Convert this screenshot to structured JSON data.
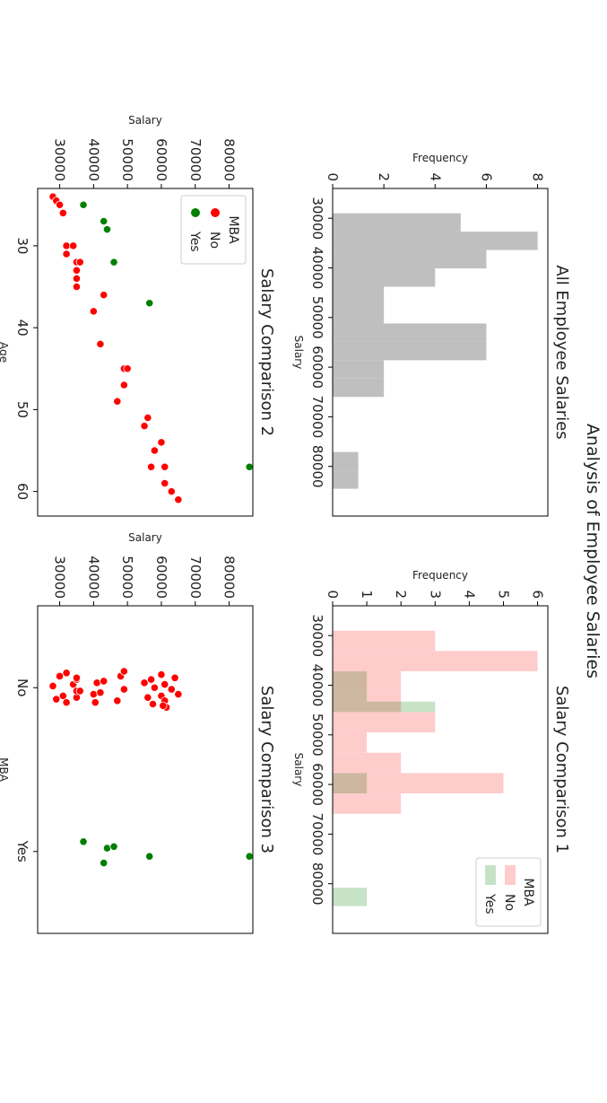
{
  "figure": {
    "suptitle": "Analysis of Employee Salaries"
  },
  "chart_data": [
    {
      "id": "all",
      "type": "bar",
      "title": "All Employee Salaries",
      "xlabel": "Salary",
      "ylabel": "Frequency",
      "xlim": [
        24000,
        90000
      ],
      "ylim": [
        0,
        8.4
      ],
      "xticks": [
        30000,
        40000,
        50000,
        60000,
        70000,
        80000
      ],
      "yticks": [
        0,
        2,
        4,
        6,
        8
      ],
      "grid": false,
      "series": [
        {
          "color": "#bfbfbf",
          "bins": [
            [
              29000,
              32700,
              5
            ],
            [
              32700,
              36400,
              8
            ],
            [
              36400,
              40100,
              6
            ],
            [
              40100,
              43800,
              4
            ],
            [
              43800,
              47500,
              2
            ],
            [
              47500,
              51200,
              2
            ],
            [
              51200,
              54900,
              6
            ],
            [
              54900,
              58600,
              6
            ],
            [
              58600,
              62300,
              2
            ],
            [
              62300,
              66000,
              2
            ],
            [
              66000,
              69700,
              0
            ],
            [
              69700,
              73400,
              0
            ],
            [
              73400,
              77100,
              0
            ],
            [
              77100,
              80800,
              1
            ],
            [
              80800,
              84500,
              1
            ]
          ]
        }
      ]
    },
    {
      "id": "mba",
      "type": "bar",
      "title": "Salary Comparison 1",
      "xlabel": "Salary",
      "ylabel": "Frequency",
      "xlim": [
        24000,
        90000
      ],
      "ylim": [
        0,
        6.3
      ],
      "xticks": [
        30000,
        40000,
        50000,
        60000,
        70000,
        80000
      ],
      "yticks": [
        0,
        1,
        2,
        3,
        4,
        5,
        6
      ],
      "grid": false,
      "legend": {
        "title": "MBA",
        "placement": "top-right"
      },
      "series": [
        {
          "name": "No",
          "color": "#ffcccc",
          "bins": [
            [
              29000,
              33100,
              3
            ],
            [
              33100,
              37200,
              6
            ],
            [
              37200,
              41300,
              2
            ],
            [
              41300,
              45400,
              2
            ],
            [
              45400,
              49500,
              3
            ],
            [
              49500,
              53600,
              1
            ],
            [
              53600,
              57700,
              2
            ],
            [
              57700,
              61800,
              5
            ],
            [
              61800,
              65900,
              2
            ]
          ]
        },
        {
          "name": "Yes",
          "color": "#c7e3c7",
          "bins": [
            [
              37200,
              41300,
              1
            ],
            [
              41300,
              43300,
              1
            ],
            [
              43300,
              45400,
              3
            ],
            [
              45400,
              57700,
              0
            ],
            [
              57700,
              61800,
              1
            ],
            [
              80800,
              84500,
              1
            ]
          ]
        }
      ]
    },
    {
      "id": "age",
      "type": "scatter",
      "title": "Salary Comparison 2",
      "xlabel": "Age",
      "ylabel": "Salary",
      "xlim": [
        23,
        63
      ],
      "ylim": [
        23500,
        87000
      ],
      "xticks": [
        30,
        40,
        50,
        60
      ],
      "yticks": [
        30000,
        40000,
        50000,
        60000,
        70000,
        80000
      ],
      "grid": false,
      "legend": {
        "title": "MBA",
        "placement": "top-left"
      },
      "series": [
        {
          "name": "No",
          "color": "#ff0000",
          "points": [
            [
              24,
              28000
            ],
            [
              24.5,
              29000
            ],
            [
              25,
              30000
            ],
            [
              26,
              31000
            ],
            [
              30,
              32000
            ],
            [
              31,
              32000
            ],
            [
              30,
              34000
            ],
            [
              32,
              35000
            ],
            [
              33,
              35000
            ],
            [
              34,
              35000
            ],
            [
              35,
              35000
            ],
            [
              32,
              36000
            ],
            [
              36,
              43000
            ],
            [
              38,
              40000
            ],
            [
              42,
              42000
            ],
            [
              45,
              49000
            ],
            [
              45,
              50000
            ],
            [
              47,
              49000
            ],
            [
              49,
              47000
            ],
            [
              51,
              56000
            ],
            [
              52,
              55000
            ],
            [
              54,
              60000
            ],
            [
              55,
              58000
            ],
            [
              57,
              57000
            ],
            [
              57,
              61000
            ],
            [
              59,
              61000
            ],
            [
              60,
              63000
            ],
            [
              61,
              65000
            ]
          ]
        },
        {
          "name": "Yes",
          "color": "#008000",
          "points": [
            [
              25,
              37000
            ],
            [
              27,
              43000
            ],
            [
              28,
              44000
            ],
            [
              32,
              46000
            ],
            [
              37,
              56500
            ],
            [
              57,
              86000
            ]
          ]
        }
      ]
    },
    {
      "id": "strip",
      "type": "scatter",
      "title": "Salary Comparison 3",
      "xlabel": "MBA",
      "ylabel": "Salary",
      "xlim": [
        -0.5,
        1.5
      ],
      "ylim": [
        23500,
        87000
      ],
      "xticks": [
        "No",
        "Yes"
      ],
      "yticks": [
        30000,
        40000,
        50000,
        60000,
        70000,
        80000
      ],
      "grid": false,
      "series": [
        {
          "name": "No",
          "color": "#ff0000",
          "points": [
            [
              -0.01,
              28000
            ],
            [
              0.07,
              29000
            ],
            [
              -0.07,
              30000
            ],
            [
              0.05,
              31000
            ],
            [
              -0.09,
              32000
            ],
            [
              0.09,
              32000
            ],
            [
              -0.02,
              34000
            ],
            [
              0.06,
              35000
            ],
            [
              -0.05,
              35000
            ],
            [
              0.02,
              35000
            ],
            [
              -0.06,
              35000
            ],
            [
              0.02,
              36000
            ],
            [
              0.04,
              40000
            ],
            [
              0.09,
              40500
            ],
            [
              -0.03,
              41000
            ],
            [
              0.03,
              42000
            ],
            [
              -0.04,
              43000
            ],
            [
              0.08,
              47000
            ],
            [
              -0.07,
              48000
            ],
            [
              0.01,
              49000
            ],
            [
              -0.1,
              49000
            ],
            [
              -0.03,
              55000
            ],
            [
              0.06,
              56000
            ],
            [
              -0.05,
              57000
            ],
            [
              0.1,
              57500
            ],
            [
              0.0,
              58000
            ],
            [
              -0.08,
              60000
            ],
            [
              0.05,
              60000
            ],
            [
              -0.02,
              61000
            ],
            [
              0.08,
              61000
            ],
            [
              0.01,
              63000
            ],
            [
              -0.06,
              64000
            ],
            [
              0.04,
              65000
            ],
            [
              0.12,
              61500
            ],
            [
              0.11,
              60500
            ]
          ]
        },
        {
          "name": "Yes",
          "color": "#008000",
          "points": [
            [
              0.94,
              37000
            ],
            [
              1.07,
              43000
            ],
            [
              0.98,
              44000
            ],
            [
              0.97,
              46000
            ],
            [
              1.03,
              56500
            ],
            [
              1.03,
              86000
            ]
          ]
        }
      ]
    }
  ]
}
